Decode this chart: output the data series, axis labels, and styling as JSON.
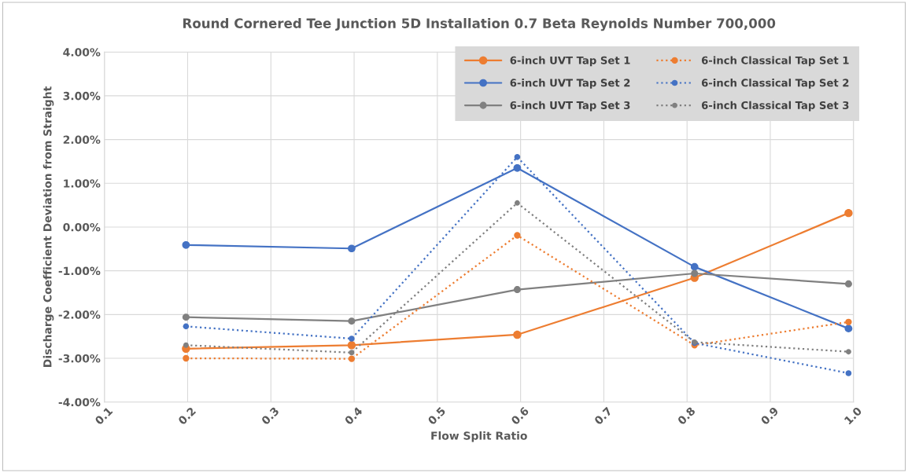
{
  "chart_data": {
    "type": "line",
    "title": "Round Cornered Tee Junction 5D Installation 0.7 Beta Reynolds Number 700,000",
    "xlabel": "Flow Split Ratio",
    "ylabel": "Discharge Coefficient Deviation from Straight",
    "x": [
      0.198,
      0.397,
      0.596,
      0.809,
      0.994
    ],
    "series": [
      {
        "name": "6-inch UVT Tap Set 1",
        "color": "#ed7d31",
        "line_style": "solid",
        "values": [
          -2.78,
          -2.7,
          -2.46,
          -1.16,
          0.32
        ]
      },
      {
        "name": "6-inch UVT Tap Set 2",
        "color": "#4472c4",
        "line_style": "solid",
        "values": [
          -0.41,
          -0.49,
          1.35,
          -0.91,
          -2.32
        ]
      },
      {
        "name": "6-inch UVT Tap Set 3",
        "color": "#808080",
        "line_style": "solid",
        "values": [
          -2.06,
          -2.15,
          -1.43,
          -1.06,
          -1.3
        ]
      },
      {
        "name": "6-inch Classical Tap Set 1",
        "color": "#ed7d31",
        "line_style": "dotted",
        "values": [
          -3.0,
          -3.01,
          -0.19,
          -2.7,
          -2.17
        ]
      },
      {
        "name": "6-inch Classical Tap Set 2",
        "color": "#4472c4",
        "line_style": "dotted",
        "values": [
          -2.27,
          -2.55,
          1.6,
          -2.65,
          -3.34
        ]
      },
      {
        "name": "6-inch Classical Tap Set 3",
        "color": "#808080",
        "line_style": "dotted",
        "values": [
          -2.7,
          -2.87,
          0.55,
          -2.63,
          -2.85
        ]
      }
    ],
    "xlim": [
      0.1,
      1.0
    ],
    "xticks": [
      {
        "value": 0.1,
        "label": "0.1"
      },
      {
        "value": 0.2,
        "label": "0.2"
      },
      {
        "value": 0.3,
        "label": "0.3"
      },
      {
        "value": 0.4,
        "label": "0.4"
      },
      {
        "value": 0.5,
        "label": "0.5"
      },
      {
        "value": 0.6,
        "label": "0.6"
      },
      {
        "value": 0.7,
        "label": "0.7"
      },
      {
        "value": 0.8,
        "label": "0.8"
      },
      {
        "value": 0.9,
        "label": "0.9"
      },
      {
        "value": 1.0,
        "label": "1.0"
      }
    ],
    "ylim": [
      -4,
      4
    ],
    "yticks": [
      {
        "value": -4,
        "label": "-4.00%"
      },
      {
        "value": -3,
        "label": "-3.00%"
      },
      {
        "value": -2,
        "label": "-2.00%"
      },
      {
        "value": -1,
        "label": "-1.00%"
      },
      {
        "value": 0,
        "label": "0.00%"
      },
      {
        "value": 1,
        "label": "1.00%"
      },
      {
        "value": 2,
        "label": "2.00%"
      },
      {
        "value": 3,
        "label": "3.00%"
      },
      {
        "value": 4,
        "label": "4.00%"
      }
    ],
    "grid": true,
    "legend": "top right",
    "marker": "circle"
  }
}
